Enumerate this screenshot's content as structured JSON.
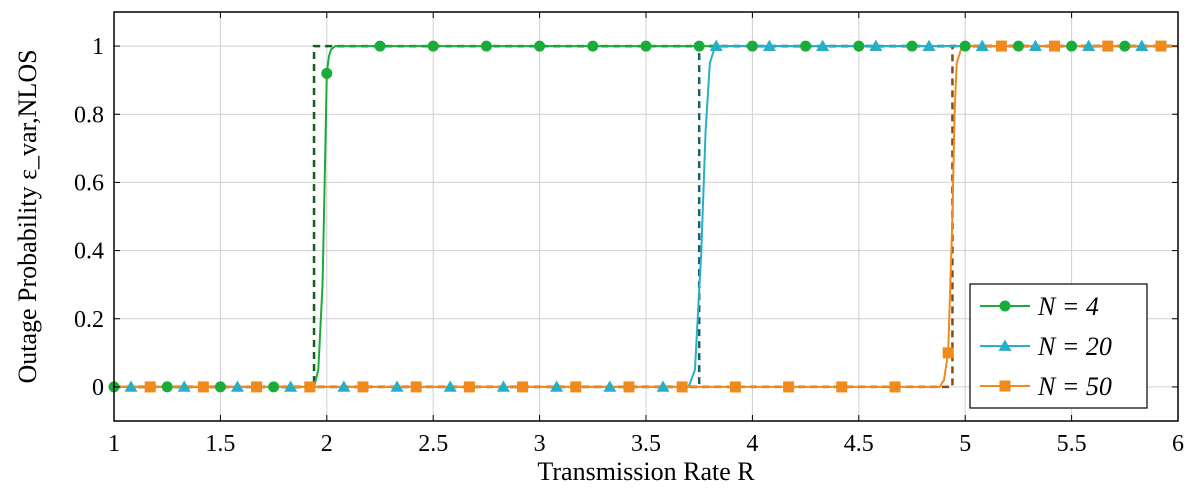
{
  "chart_data": {
    "type": "line",
    "xlabel": "Transmission Rate R",
    "ylabel": "Outage Probability ε_var,NLOS",
    "xlim": [
      1,
      6
    ],
    "ylim": [
      -0.1,
      1.1
    ],
    "xticks": [
      1,
      1.5,
      2,
      2.5,
      3,
      3.5,
      4,
      4.5,
      5,
      5.5,
      6
    ],
    "xtick_labels": [
      "1",
      "1.5",
      "2",
      "2.5",
      "3",
      "3.5",
      "4",
      "4.5",
      "5",
      "5.5",
      "6"
    ],
    "yticks": [
      0,
      0.2,
      0.4,
      0.6,
      0.8,
      1
    ],
    "ytick_labels": [
      "0",
      "0.2",
      "0.4",
      "0.6",
      "0.8",
      "1"
    ],
    "grid": true,
    "legend_position": "bottom-right",
    "series": [
      {
        "name": "N = 4",
        "color": "#1aac3a",
        "marker": "circle",
        "curve_x": [
          1,
          1.94,
          1.96,
          1.98,
          1.99,
          2.0,
          2.01,
          2.02,
          2.04,
          2.06,
          6
        ],
        "curve_y": [
          0,
          0,
          0.05,
          0.3,
          0.6,
          0.92,
          0.97,
          0.99,
          1,
          1,
          1
        ],
        "markers_x": [
          1,
          1.25,
          1.5,
          1.75,
          2.0,
          2.25,
          2.5,
          2.75,
          3,
          3.25,
          3.5,
          3.75,
          4,
          4.25,
          4.5,
          4.75,
          5,
          5.25,
          5.5,
          5.75
        ],
        "markers_y": [
          0,
          0,
          0,
          0,
          0.92,
          1,
          1,
          1,
          1,
          1,
          1,
          1,
          1,
          1,
          1,
          1,
          1,
          1,
          1,
          1
        ],
        "bound_x": [
          1,
          1.94,
          1.94,
          6
        ],
        "bound_y": [
          0,
          0,
          1,
          1
        ]
      },
      {
        "name": "N = 20",
        "color": "#26b0c8",
        "marker": "triangle",
        "curve_x": [
          1,
          3.7,
          3.73,
          3.76,
          3.78,
          3.8,
          3.82,
          3.85,
          6
        ],
        "curve_y": [
          0,
          0,
          0.05,
          0.4,
          0.75,
          0.95,
          0.99,
          1,
          1
        ],
        "markers_x": [
          1.08,
          1.33,
          1.58,
          1.83,
          2.08,
          2.33,
          2.58,
          2.83,
          3.08,
          3.33,
          3.58,
          3.83,
          4.08,
          4.33,
          4.58,
          4.83,
          5.08,
          5.33,
          5.58,
          5.83
        ],
        "markers_y": [
          0,
          0,
          0,
          0,
          0,
          0,
          0,
          0,
          0,
          0,
          0,
          1,
          1,
          1,
          1,
          1,
          1,
          1,
          1,
          1
        ],
        "bound_x": [
          1,
          3.75,
          3.75,
          6
        ],
        "bound_y": [
          0,
          0,
          1,
          1
        ]
      },
      {
        "name": "N = 50",
        "color": "#f08a1c",
        "marker": "square",
        "curve_x": [
          1,
          4.88,
          4.9,
          4.92,
          4.94,
          4.95,
          4.96,
          4.98,
          5.0,
          6
        ],
        "curve_y": [
          0,
          0,
          0.02,
          0.1,
          0.5,
          0.8,
          0.95,
          0.99,
          1,
          1
        ],
        "markers_x": [
          1.17,
          1.42,
          1.67,
          1.92,
          2.17,
          2.42,
          2.67,
          2.92,
          3.17,
          3.42,
          3.67,
          3.92,
          4.17,
          4.42,
          4.67,
          4.92,
          5.17,
          5.42,
          5.67,
          5.92
        ],
        "markers_y": [
          0,
          0,
          0,
          0,
          0,
          0,
          0,
          0,
          0,
          0,
          0,
          0,
          0,
          0,
          0,
          0.1,
          1,
          1,
          1,
          1
        ],
        "bound_x": [
          1,
          4.94,
          4.94,
          6
        ],
        "bound_y": [
          0,
          0,
          1,
          1
        ]
      }
    ]
  }
}
